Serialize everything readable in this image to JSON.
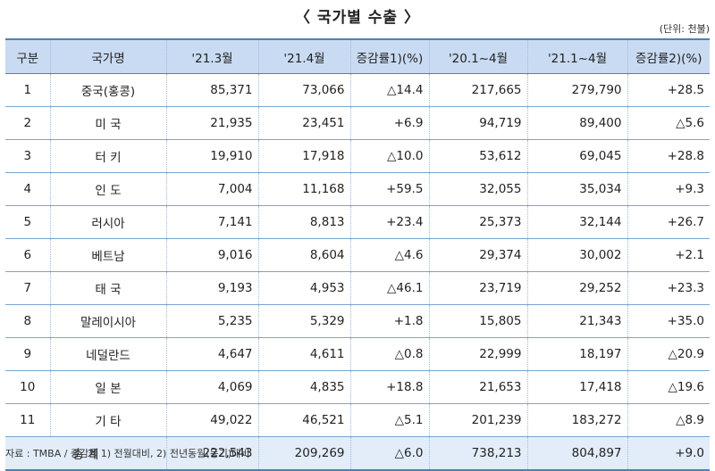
{
  "title": "〈 국가별 수출 〉",
  "unit": "(단위: 천불)",
  "headers": [
    "구분",
    "국가명",
    "'21.3월",
    "'21.4월",
    "증감률1)(%)",
    "'20.1~4월",
    "'21.1~4월",
    "증감률2)(%)"
  ],
  "rows": [
    [
      "1",
      "중국(홍콩)",
      "85,371",
      "73,066",
      "△14.4",
      "217,665",
      "279,790",
      "+28.5"
    ],
    [
      "2",
      "미 국",
      "21,935",
      "23,451",
      "+6.9",
      "94,719",
      "89,400",
      "△5.6"
    ],
    [
      "3",
      "터 키",
      "19,910",
      "17,918",
      "△10.0",
      "53,612",
      "69,045",
      "+28.8"
    ],
    [
      "4",
      "인 도",
      "7,004",
      "11,168",
      "+59.5",
      "32,055",
      "35,034",
      "+9.3"
    ],
    [
      "5",
      "러시아",
      "7,141",
      "8,813",
      "+23.4",
      "25,373",
      "32,144",
      "+26.7"
    ],
    [
      "6",
      "베트남",
      "9,016",
      "8,604",
      "△4.6",
      "29,374",
      "30,002",
      "+2.1"
    ],
    [
      "7",
      "태 국",
      "9,193",
      "4,953",
      "△46.1",
      "23,719",
      "29,252",
      "+23.3"
    ],
    [
      "8",
      "말레이시아",
      "5,235",
      "5,329",
      "+1.8",
      "15,805",
      "21,343",
      "+35.0"
    ],
    [
      "9",
      "네덜란드",
      "4,647",
      "4,611",
      "△0.8",
      "22,999",
      "18,197",
      "△20.9"
    ],
    [
      "10",
      "일 본",
      "4,069",
      "4,835",
      "+18.8",
      "21,653",
      "17,418",
      "△19.6"
    ],
    [
      "11",
      "기 타",
      "49,022",
      "46,521",
      "△5.1",
      "201,239",
      "183,272",
      "△8.9"
    ]
  ],
  "total": [
    "총 계",
    "222,543",
    "209,269",
    "△6.0",
    "738,213",
    "804,897",
    "+9.0"
  ],
  "source": "자료 : TMBA / 증감률 1) 전월대비, 2) 전년동월(동기)대비"
}
